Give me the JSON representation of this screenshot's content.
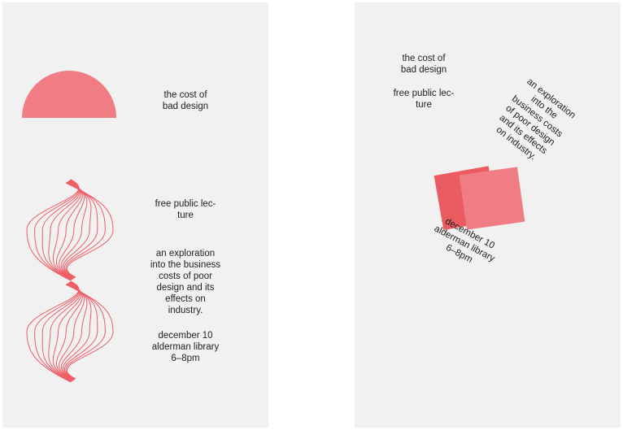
{
  "accent": "#f07c84",
  "left_poster": {
    "title": "the cost of\nbad design",
    "subtitle": "free public lec-\nture",
    "description": "an exploration\ninto the business\ncosts of poor\ndesign and its\neffects on\nindustry.",
    "event": "december 10\nalderman library\n6–8pm"
  },
  "right_poster": {
    "title": "the cost of\nbad design",
    "subtitle": "free public lec-\nture",
    "description": "an exploration\ninto the\nbusiness costs\nof poor design\nand its effects\non industry.",
    "event": "december 10\nalderman library\n6–8pm"
  }
}
